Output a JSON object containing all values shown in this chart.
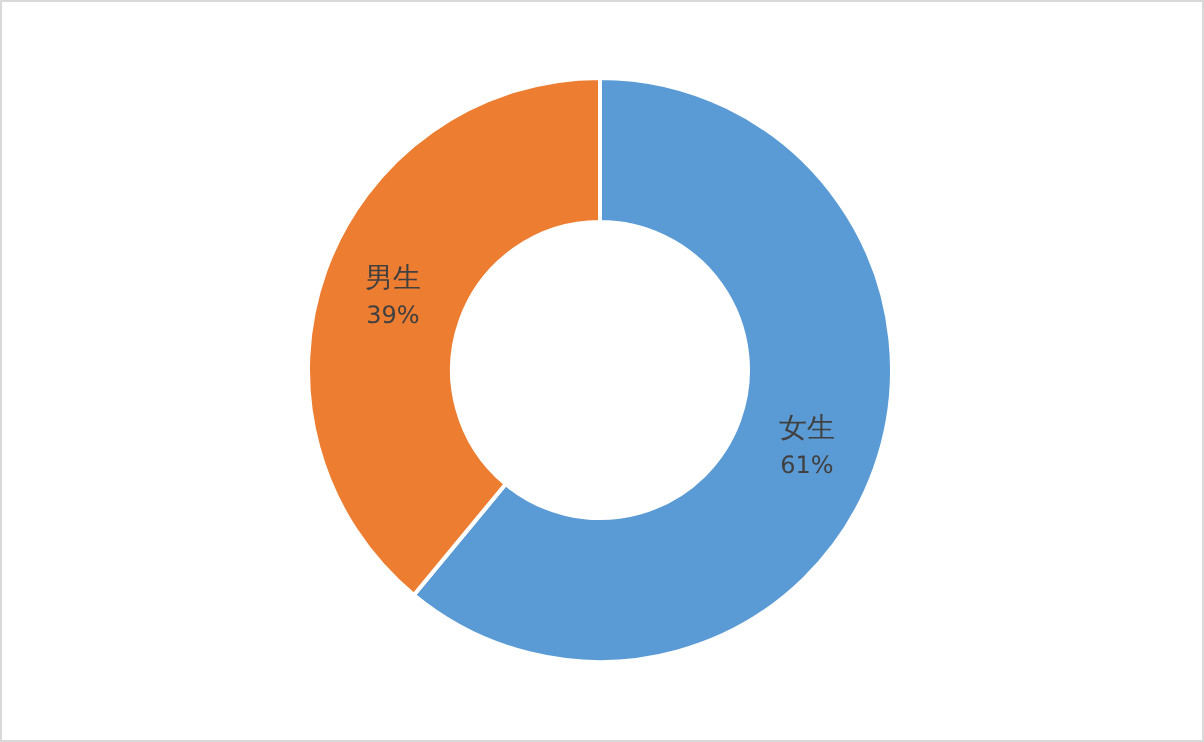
{
  "chart_data": {
    "type": "donut",
    "categories": [
      "女生",
      "男生"
    ],
    "values": [
      61,
      39
    ],
    "colors": [
      "#5b9bd5",
      "#ed7d31"
    ],
    "value_labels": [
      "61%",
      "39%"
    ]
  }
}
